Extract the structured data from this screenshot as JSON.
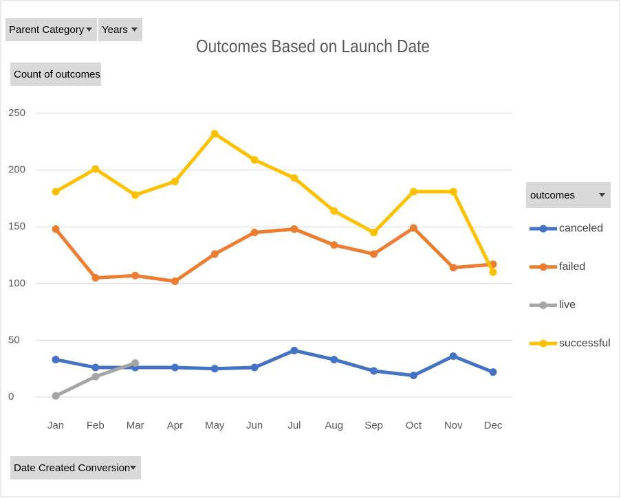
{
  "pivot_buttons": {
    "filters": [
      "Parent Category",
      "Years"
    ],
    "value_field": "Count of outcomes",
    "axis_field": "Date Created Conversion",
    "legend_field": "outcomes"
  },
  "chart_data": {
    "type": "line",
    "title": "Outcomes Based on Launch Date",
    "categories": [
      "Jan",
      "Feb",
      "Mar",
      "Apr",
      "May",
      "Jun",
      "Jul",
      "Aug",
      "Sep",
      "Oct",
      "Nov",
      "Dec"
    ],
    "series": [
      {
        "name": "canceled",
        "color": "#4472c4",
        "values": [
          33,
          26,
          26,
          26,
          25,
          26,
          41,
          33,
          23,
          19,
          36,
          22
        ]
      },
      {
        "name": "failed",
        "color": "#ed7d31",
        "values": [
          148,
          105,
          107,
          102,
          126,
          145,
          148,
          134,
          126,
          149,
          114,
          117
        ]
      },
      {
        "name": "live",
        "color": "#a5a5a5",
        "values": [
          1,
          18,
          30,
          null,
          null,
          null,
          null,
          null,
          null,
          null,
          null,
          null
        ]
      },
      {
        "name": "successful",
        "color": "#ffc000",
        "values": [
          181,
          201,
          178,
          190,
          232,
          209,
          193,
          164,
          145,
          181,
          181,
          110
        ]
      }
    ],
    "ylim": [
      0,
      250
    ],
    "yticks": [
      0,
      50,
      100,
      150,
      200,
      250
    ],
    "grid": true,
    "legend": "right"
  }
}
